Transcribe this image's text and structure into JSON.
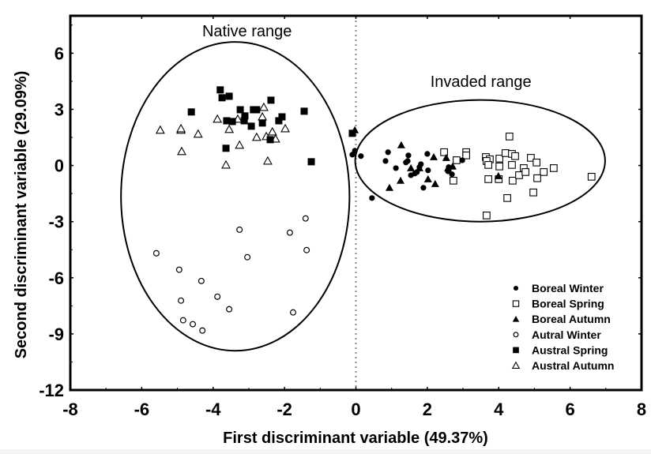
{
  "chart_data": {
    "type": "scatter",
    "title": "",
    "xlabel": "First discriminant variable (49.37%)",
    "ylabel": "Second discriminant variable (29.09%)",
    "xlim": [
      -8,
      8
    ],
    "ylim": [
      -12,
      8
    ],
    "xticks": [
      -8,
      -6,
      -4,
      -2,
      0,
      2,
      4,
      6,
      8
    ],
    "yticks": [
      6,
      3,
      0,
      -3,
      -6,
      -9,
      -12
    ],
    "reference_line": {
      "axis": "x",
      "value": 0,
      "style": "dotted"
    },
    "legend_position": "bottom-right",
    "annotations": [
      {
        "text": "Native range",
        "x": -3.05,
        "y": 7.2
      },
      {
        "text": "Invaded range",
        "x": 3.5,
        "y": 4.5
      }
    ],
    "ellipses": [
      {
        "name": "Native range",
        "cx": -3.38,
        "cy": -1.65,
        "rx": 3.2,
        "ry": 8.25
      },
      {
        "name": "Invaded range",
        "cx": 3.48,
        "cy": 0.25,
        "rx": 3.5,
        "ry": 3.25
      }
    ],
    "series": [
      {
        "name": "Boreal Winter",
        "marker": "filled-circle",
        "points": [
          [
            -0.1,
            0.58
          ],
          [
            -0.03,
            0.79
          ],
          [
            0.14,
            0.5
          ],
          [
            0.9,
            0.71
          ],
          [
            0.83,
            0.24
          ],
          [
            1.12,
            -0.14
          ],
          [
            1.47,
            0.54
          ],
          [
            1.4,
            0.16
          ],
          [
            1.45,
            0.24
          ],
          [
            2.0,
            0.62
          ],
          [
            2.02,
            -0.26
          ],
          [
            1.89,
            -1.19
          ],
          [
            1.54,
            -0.52
          ],
          [
            1.65,
            -0.43
          ],
          [
            1.71,
            -0.35
          ],
          [
            1.78,
            -0.09
          ],
          [
            1.82,
            0.07
          ],
          [
            2.6,
            -0.09
          ],
          [
            2.58,
            -0.31
          ],
          [
            2.69,
            -0.47
          ],
          [
            2.98,
            0.28
          ],
          [
            0.45,
            -1.74
          ]
        ]
      },
      {
        "name": "Boreal Spring",
        "marker": "open-square",
        "points": [
          [
            2.47,
            0.71
          ],
          [
            3.09,
            0.71
          ],
          [
            3.09,
            0.54
          ],
          [
            2.82,
            0.28
          ],
          [
            2.73,
            -0.81
          ],
          [
            3.64,
            0.45
          ],
          [
            3.75,
            0.33
          ],
          [
            3.66,
            0.24
          ],
          [
            3.71,
            0.03
          ],
          [
            4.02,
            0.37
          ],
          [
            4.02,
            -0.05
          ],
          [
            4.3,
            1.55
          ],
          [
            4.19,
            0.66
          ],
          [
            4.37,
            0.62
          ],
          [
            4.46,
            0.5
          ],
          [
            4.37,
            0.03
          ],
          [
            3.71,
            -0.73
          ],
          [
            4.0,
            -0.73
          ],
          [
            4.39,
            -0.81
          ],
          [
            4.57,
            -0.52
          ],
          [
            4.7,
            -0.14
          ],
          [
            4.75,
            -0.35
          ],
          [
            4.9,
            0.41
          ],
          [
            5.06,
            0.16
          ],
          [
            5.26,
            -0.35
          ],
          [
            5.08,
            -0.68
          ],
          [
            5.54,
            -0.14
          ],
          [
            4.97,
            -1.44
          ],
          [
            4.24,
            -1.74
          ],
          [
            3.66,
            -2.67
          ],
          [
            6.6,
            -0.6
          ]
        ]
      },
      {
        "name": "Boreal Autumn",
        "marker": "filled-triangle",
        "points": [
          [
            1.27,
            1.09
          ],
          [
            2.18,
            0.45
          ],
          [
            2.53,
            0.41
          ],
          [
            1.54,
            -0.14
          ],
          [
            1.78,
            -0.14
          ],
          [
            2.02,
            -0.73
          ],
          [
            2.22,
            -0.98
          ],
          [
            1.25,
            -0.81
          ],
          [
            0.94,
            -1.19
          ],
          [
            2.71,
            -0.05
          ],
          [
            2.58,
            -0.14
          ],
          [
            3.99,
            -0.56
          ],
          [
            -0.03,
            1.89
          ]
        ]
      },
      {
        "name": "Autral Winter",
        "marker": "open-circle",
        "points": [
          [
            -5.59,
            -4.69
          ],
          [
            -4.95,
            -5.57
          ],
          [
            -4.9,
            -7.22
          ],
          [
            -4.84,
            -8.27
          ],
          [
            -4.57,
            -8.48
          ],
          [
            -4.3,
            -8.82
          ],
          [
            -4.33,
            -6.17
          ],
          [
            -3.88,
            -7.01
          ],
          [
            -3.55,
            -7.68
          ],
          [
            -3.26,
            -3.43
          ],
          [
            -3.04,
            -4.9
          ],
          [
            -1.85,
            -3.59
          ],
          [
            -1.41,
            -2.83
          ],
          [
            -1.38,
            -4.52
          ],
          [
            -1.76,
            -7.85
          ]
        ]
      },
      {
        "name": "Austral Spring",
        "marker": "filled-square",
        "points": [
          [
            -3.8,
            4.04
          ],
          [
            -3.75,
            3.62
          ],
          [
            -3.55,
            3.7
          ],
          [
            -4.61,
            2.86
          ],
          [
            -3.24,
            2.98
          ],
          [
            -2.87,
            2.98
          ],
          [
            -2.78,
            2.98
          ],
          [
            -2.38,
            3.49
          ],
          [
            -1.45,
            2.9
          ],
          [
            -3.62,
            2.39
          ],
          [
            -3.46,
            2.35
          ],
          [
            -3.11,
            2.65
          ],
          [
            -3.13,
            2.39
          ],
          [
            -2.93,
            2.1
          ],
          [
            -2.62,
            2.27
          ],
          [
            -2.07,
            2.6
          ],
          [
            -2.16,
            2.39
          ],
          [
            -2.4,
            1.38
          ],
          [
            -3.64,
            0.92
          ],
          [
            -1.25,
            0.2
          ],
          [
            -0.1,
            1.72
          ]
        ]
      },
      {
        "name": "Austral Autumn",
        "marker": "open-triangle",
        "points": [
          [
            -5.48,
            1.89
          ],
          [
            -4.9,
            1.89
          ],
          [
            -4.9,
            1.97
          ],
          [
            -4.42,
            1.68
          ],
          [
            -4.88,
            0.75
          ],
          [
            -3.88,
            2.48
          ],
          [
            -3.64,
            0.03
          ],
          [
            -3.55,
            1.93
          ],
          [
            -3.26,
            1.09
          ],
          [
            -3.31,
            2.48
          ],
          [
            -2.58,
            3.11
          ],
          [
            -2.62,
            2.6
          ],
          [
            -2.78,
            1.51
          ],
          [
            -2.51,
            1.55
          ],
          [
            -2.34,
            1.8
          ],
          [
            -2.25,
            1.42
          ],
          [
            -1.98,
            1.97
          ],
          [
            -2.47,
            0.24
          ]
        ]
      }
    ]
  }
}
